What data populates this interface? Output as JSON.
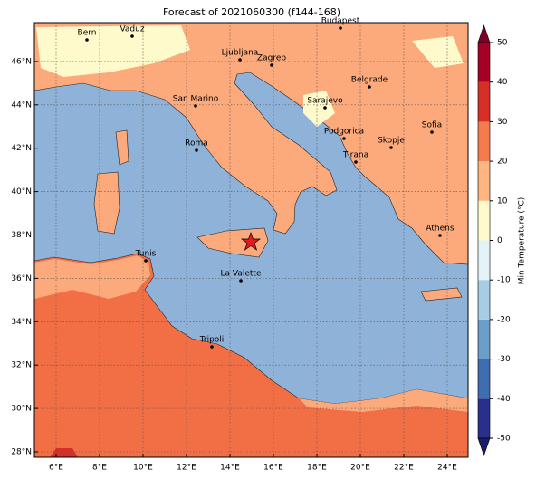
{
  "title": "Forecast of 2021060300 (f144-168)",
  "lon_labels": [
    "6°E",
    "8°E",
    "10°E",
    "12°E",
    "14°E",
    "16°E",
    "18°E",
    "20°E",
    "22°E",
    "24°E"
  ],
  "lat_labels": [
    "28°N",
    "30°N",
    "32°N",
    "34°N",
    "36°N",
    "38°N",
    "40°N",
    "42°N",
    "44°N",
    "46°N"
  ],
  "cities": [
    "Bern",
    "Vaduz",
    "Budapest",
    "Ljubljana",
    "Zagreb",
    "Belgrade",
    "San Marino",
    "Sarajevo",
    "Sofia",
    "Roma",
    "Podgorica",
    "Skopje",
    "Tirana",
    "Athens",
    "Tunis",
    "La Valette",
    "Tripoli"
  ],
  "colorbar": {
    "label": "Min Temperature (°C)",
    "lim": [
      -50,
      50
    ],
    "ticks": [
      -50,
      -40,
      -30,
      -20,
      -10,
      0,
      10,
      20,
      30,
      40,
      50
    ],
    "colors": [
      "#2b2f8c",
      "#3e6db0",
      "#6b9ec9",
      "#a6cde3",
      "#e4f3f7",
      "#fffacb",
      "#fdb582",
      "#f47b4e",
      "#d62f27",
      "#a50026"
    ],
    "under_color": "#1b1d6a",
    "over_color": "#7f0026"
  }
}
